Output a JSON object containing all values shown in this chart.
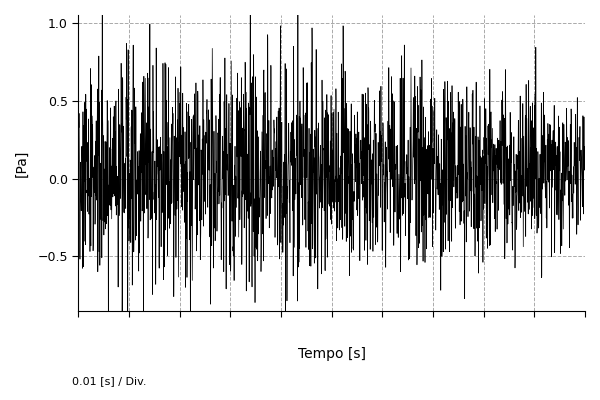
{
  "title": "",
  "xlabel": "Tempo [s]",
  "ylabel": "[Pa]",
  "div_label": "0.01 [s] / Div.",
  "ylim": [
    -0.85,
    1.05
  ],
  "yticks": [
    -0.5,
    0.0,
    0.5,
    1.0
  ],
  "num_divs": 10,
  "div_size": 0.01,
  "total_time": 0.1,
  "sample_rate": 44100,
  "seed": 42,
  "line_color": "#000000",
  "background_color": "#ffffff",
  "grid_color": "#aaaaaa",
  "grid_style": "--",
  "line_width": 0.5,
  "figsize": [
    6.0,
    4.0
  ],
  "dpi": 100,
  "font_family": "DejaVu Sans"
}
